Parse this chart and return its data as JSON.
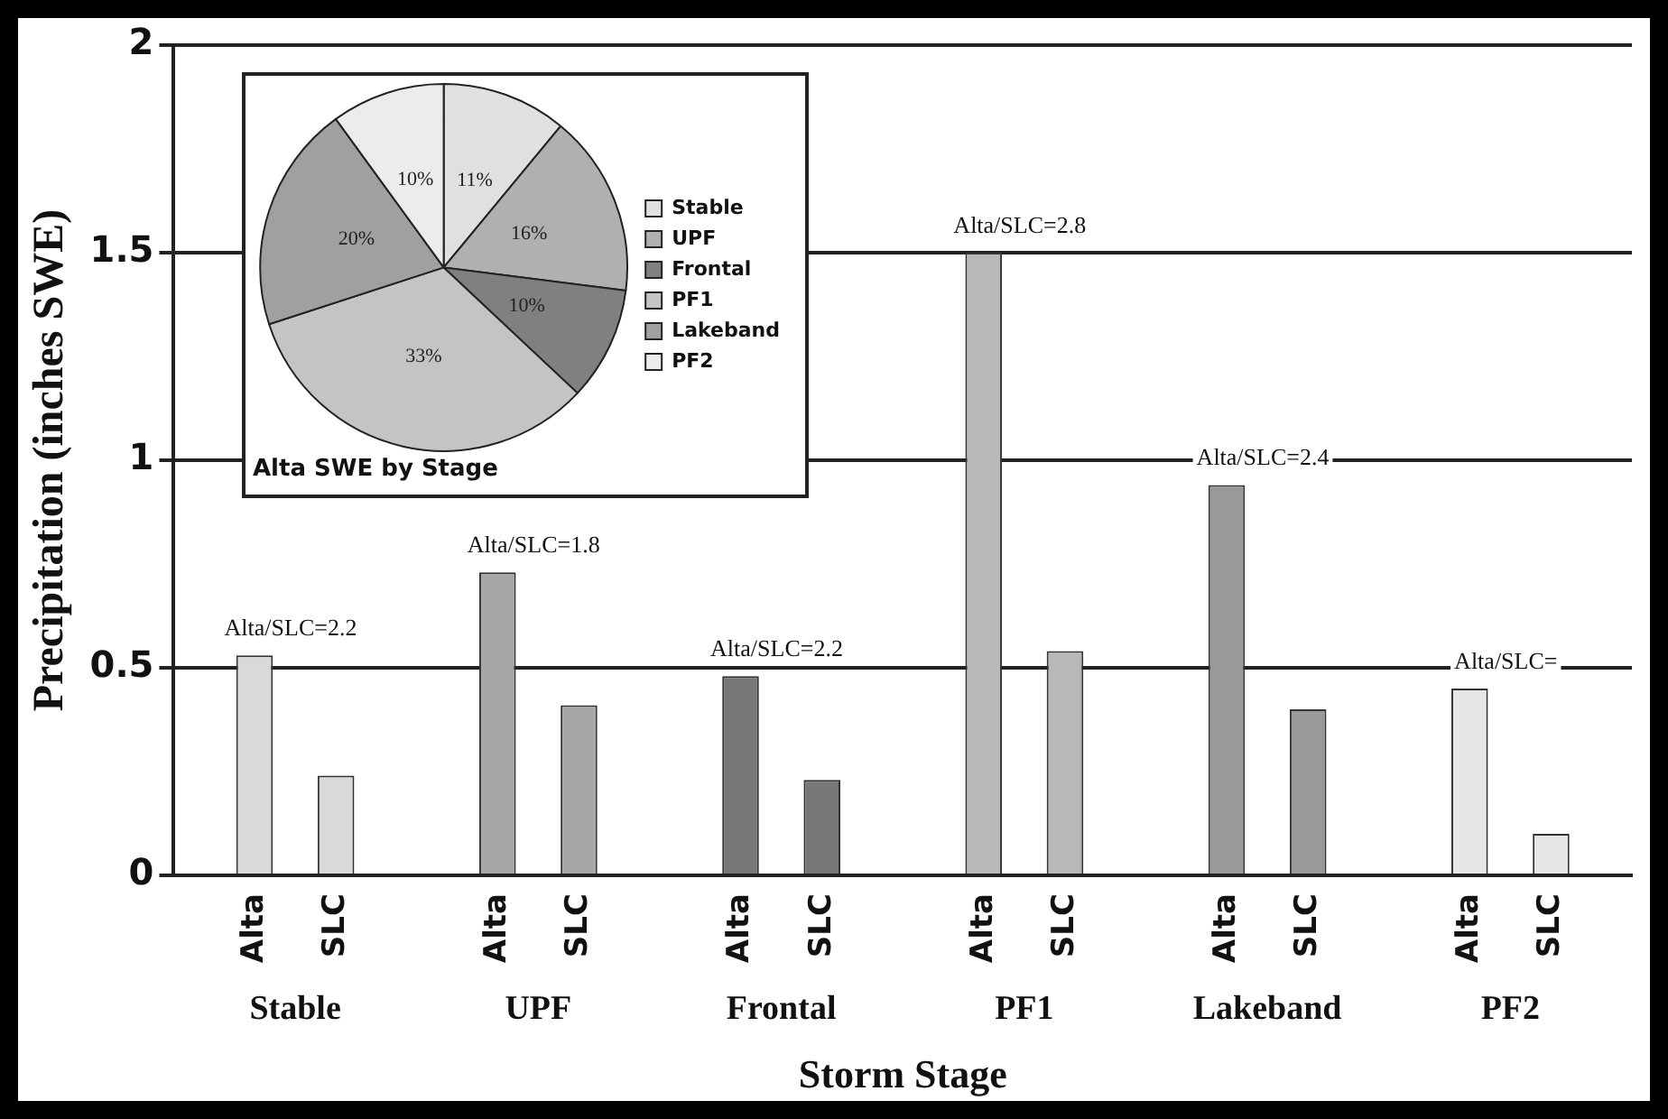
{
  "chart_data": [
    {
      "type": "bar",
      "ylabel": "Precipitation (inches SWE)",
      "xlabel": "Storm Stage",
      "categories": [
        "Stable",
        "UPF",
        "Frontal",
        "PF1",
        "Lakeband",
        "PF2"
      ],
      "series": [
        {
          "name": "Alta",
          "colors": [
            "#d9d9d9",
            "#a6a6a6",
            "#777777",
            "#b8b8b8",
            "#999999",
            "#e6e6e6"
          ],
          "values": [
            0.53,
            0.73,
            0.48,
            1.5,
            0.94,
            0.45
          ]
        },
        {
          "name": "SLC",
          "colors": [
            "#d9d9d9",
            "#a6a6a6",
            "#777777",
            "#b8b8b8",
            "#999999",
            "#e6e6e6"
          ],
          "values": [
            0.24,
            0.41,
            0.23,
            0.54,
            0.4,
            0.1
          ]
        }
      ],
      "ylim": [
        0,
        2
      ],
      "yticks": [
        0,
        0.5,
        1,
        1.5,
        2
      ],
      "grid": "y",
      "annotations": [
        "Alta/SLC=2.2",
        "Alta/SLC=1.8",
        "Alta/SLC=2.2",
        "Alta/SLC=2.8",
        "Alta/SLC=2.4",
        "Alta/SLC="
      ]
    },
    {
      "type": "pie",
      "title": "Alta SWE by Stage",
      "categories": [
        "Stable",
        "UPF",
        "Frontal",
        "PF1",
        "Lakeband",
        "PF2"
      ],
      "values": [
        11,
        16,
        10,
        33,
        20,
        10
      ],
      "colors": [
        "#e0e0e0",
        "#b0b0b0",
        "#808080",
        "#c4c4c4",
        "#a0a0a0",
        "#ececec"
      ],
      "legend": "right",
      "value_labels": [
        "11%",
        "16%",
        "10%",
        "33%",
        "20%",
        "10%"
      ]
    }
  ]
}
